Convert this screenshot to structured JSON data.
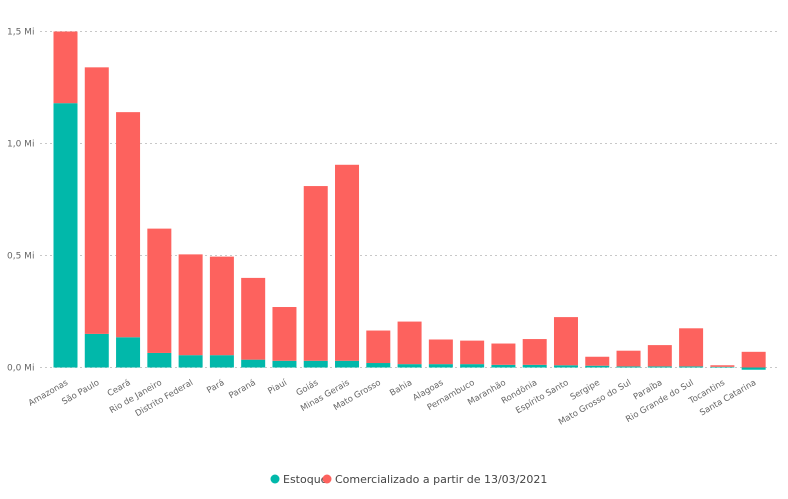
{
  "chart_data": {
    "type": "bar",
    "stacked": true,
    "categories": [
      "Amazonas",
      "São Paulo",
      "Ceará",
      "Rio de Janeiro",
      "Distrito Federal",
      "Pará",
      "Paraná",
      "Piauí",
      "Goiás",
      "Minas Gerais",
      "Mato Grosso",
      "Bahia",
      "Alagoas",
      "Pernambuco",
      "Maranhão",
      "Rondônia",
      "Espírito Santo",
      "Sergipe",
      "Mato Grosso do Sul",
      "Paraíba",
      "Rio Grande do Sul",
      "Tocantins",
      "Santa Catarina"
    ],
    "series": [
      {
        "name": "Estoque",
        "color": "#01B8AA",
        "values": [
          1.18,
          0.15,
          0.135,
          0.065,
          0.055,
          0.055,
          0.035,
          0.03,
          0.03,
          0.03,
          0.02,
          0.015,
          0.015,
          0.015,
          0.012,
          0.012,
          0.01,
          0.008,
          0.005,
          0.005,
          0.005,
          0.003,
          -0.01
        ]
      },
      {
        "name": "Comercializado a partir de 13/03/2021",
        "color": "#FD625E",
        "values": [
          0.32,
          1.19,
          1.005,
          0.555,
          0.45,
          0.44,
          0.365,
          0.24,
          0.78,
          0.875,
          0.145,
          0.19,
          0.11,
          0.105,
          0.095,
          0.115,
          0.215,
          0.04,
          0.07,
          0.095,
          0.17,
          0.007,
          0.07
        ]
      }
    ],
    "yticks": [
      "0,0 Mi",
      "0,5 Mi",
      "1,0 Mi",
      "1,5 Mi"
    ],
    "ytick_values": [
      0,
      0.5,
      1.0,
      1.5
    ],
    "ylim": [
      -0.01,
      1.5
    ],
    "title": "",
    "xlabel": "",
    "ylabel": "",
    "legend_position": "bottom-center"
  }
}
